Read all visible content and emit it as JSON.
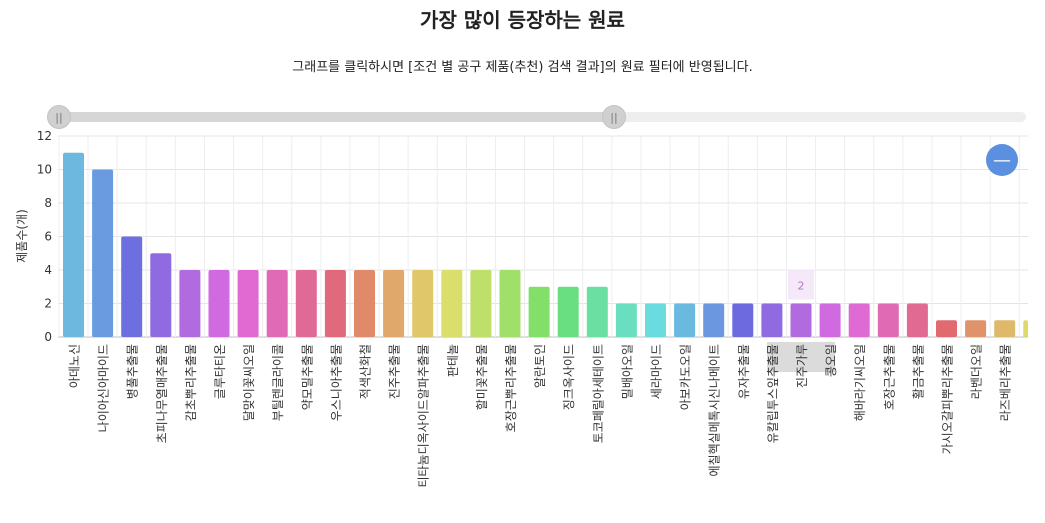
{
  "title": "가장 많이 등장하는 원료",
  "subtitle": "그래프를 클릭하시면 [조건 별 공구 제품(추천) 검색 결과]의 원료 필터에 반영됩니다.",
  "slider": {
    "handle_glyph": "||"
  },
  "zoom_button": {
    "glyph": "—",
    "icon": "zoom-out-icon"
  },
  "tooltip": {
    "value": "2",
    "category": "진주가루"
  },
  "chart_data": {
    "type": "bar",
    "xlabel": "",
    "ylabel": "제품수(개)",
    "ylim": [
      0,
      12
    ],
    "yticks": [
      0,
      2,
      4,
      6,
      8,
      10,
      12
    ],
    "grid": true,
    "categories": [
      "아데노신",
      "나이아신아마이드",
      "병풀추출물",
      "초피나무열매추출물",
      "감초뿌리추출물",
      "글루타티온",
      "달맞이꽃씨오일",
      "부틸렌글라이콜",
      "약모밀추출물",
      "우스니아추출물",
      "적색산화철",
      "진주추출물",
      "티타늄디옥사이드알파추출물",
      "판테놀",
      "할미꽃추출물",
      "호장근뿌리추출물",
      "알란토인",
      "징크옥사이드",
      "토코페릴아세테이트",
      "밀배아오일",
      "세라마이드",
      "아보카도오일",
      "에칠헥실메톡시신나메이트",
      "유자추출물",
      "유칼립투스잎추출물",
      "진주가루",
      "콩오일",
      "해바라기씨오일",
      "호장근추출물",
      "활금추출물",
      "가시오갈피뿌리추출물",
      "라벤더오일",
      "라즈베리추출물",
      ""
    ],
    "values": [
      11,
      10,
      6,
      5,
      4,
      4,
      4,
      4,
      4,
      4,
      4,
      4,
      4,
      4,
      4,
      4,
      3,
      3,
      3,
      2,
      2,
      2,
      2,
      2,
      2,
      2,
      2,
      2,
      2,
      2,
      1,
      1,
      1,
      1
    ],
    "colors": [
      "#6cb8df",
      "#6a9be0",
      "#6d6fe0",
      "#8f6ae0",
      "#b26ae0",
      "#cf6ae0",
      "#e06ad2",
      "#e06ab5",
      "#e06a96",
      "#e06a7b",
      "#e08a6a",
      "#e0a86a",
      "#e0c76a",
      "#d9df6a",
      "#bedf6a",
      "#a0df6a",
      "#82df6a",
      "#6adf82",
      "#6adfa1",
      "#6adfc0",
      "#6adcdf",
      "#6ab9df",
      "#6a97df",
      "#6d6ae0",
      "#8f6ae0",
      "#b16ae0",
      "#d06ae0",
      "#e06ad3",
      "#e06ab4",
      "#e06a92",
      "#e06a70",
      "#e0936a",
      "#e0b86a",
      "#dfd96a"
    ]
  }
}
